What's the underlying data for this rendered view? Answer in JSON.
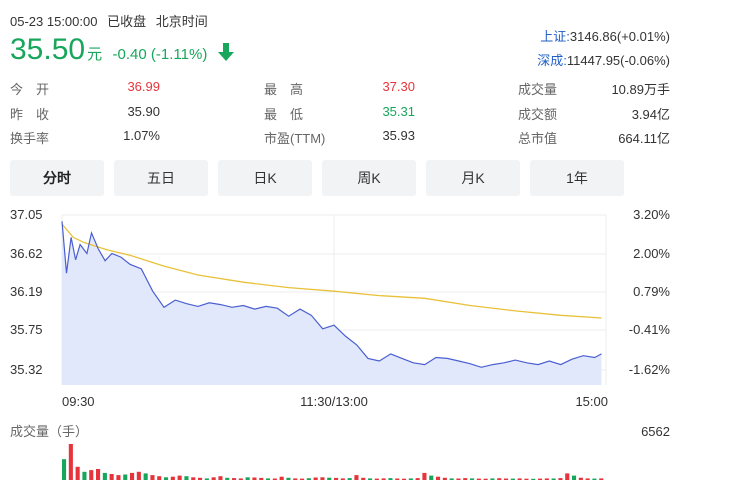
{
  "header": {
    "datetime": "05-23 15:00:00",
    "status": "已收盘",
    "timezone": "北京时间"
  },
  "quote": {
    "price": "35.50",
    "unit": "元",
    "change": "-0.40",
    "change_pct": "(-1.11%)",
    "direction": "down-arrow-icon"
  },
  "indices": [
    {
      "name": "上证:",
      "value": "3146.86(+0.01%)"
    },
    {
      "name": "深成:",
      "value": "11447.95(-0.06%)"
    }
  ],
  "stats": {
    "open": {
      "label": "今　开",
      "value": "36.99"
    },
    "prev_close": {
      "label": "昨　收",
      "value": "35.90"
    },
    "turnover_rate": {
      "label": "换手率",
      "value": "1.07%"
    },
    "high": {
      "label": "最　高",
      "value": "37.30"
    },
    "low": {
      "label": "最　低",
      "value": "35.31"
    },
    "pe": {
      "label": "市盈(TTM)",
      "value": "35.93"
    },
    "volume": {
      "label": "成交量",
      "value": "10.89万手"
    },
    "amount": {
      "label": "成交额",
      "value": "3.94亿"
    },
    "market_cap": {
      "label": "总市值",
      "value": "664.11亿"
    }
  },
  "tabs": [
    {
      "label": "分时",
      "active": true
    },
    {
      "label": "五日",
      "active": false
    },
    {
      "label": "日K",
      "active": false
    },
    {
      "label": "周K",
      "active": false
    },
    {
      "label": "月K",
      "active": false
    },
    {
      "label": "1年",
      "active": false
    }
  ],
  "colors": {
    "up": "#e7343b",
    "down": "#17a65b",
    "price_line": "#4a5fd0",
    "avg_line": "#e8c13a",
    "area": "#dfe5fb"
  },
  "chart_data": {
    "type": "line",
    "y_ticks_left": [
      "37.05",
      "36.62",
      "36.19",
      "35.75",
      "35.32"
    ],
    "y_ticks_right": [
      "3.20%",
      "2.00%",
      "0.79%",
      "-0.41%",
      "-1.62%"
    ],
    "x_ticks": [
      "09:30",
      "11:30/13:00",
      "15:00"
    ],
    "ylim": [
      35.32,
      37.05
    ],
    "prev_close": 35.9,
    "xlim": [
      0,
      240
    ],
    "series": [
      {
        "role": "price",
        "x": [
          0,
          2,
          4,
          6,
          8,
          11,
          13,
          16,
          19,
          22,
          26,
          30,
          35,
          40,
          45,
          50,
          55,
          60,
          65,
          70,
          75,
          80,
          85,
          90,
          95,
          100,
          105,
          110,
          115,
          120,
          125,
          130,
          135,
          140,
          145,
          150,
          155,
          160,
          165,
          170,
          175,
          180,
          185,
          190,
          195,
          200,
          205,
          210,
          215,
          220,
          225,
          230,
          235,
          238
        ],
        "y": [
          36.98,
          36.4,
          36.8,
          36.55,
          36.72,
          36.62,
          36.85,
          36.67,
          36.54,
          36.62,
          36.58,
          36.5,
          36.45,
          36.2,
          36.02,
          36.1,
          36.06,
          36.03,
          36.07,
          36.05,
          36.02,
          36.04,
          36.0,
          36.03,
          36.01,
          35.92,
          36.0,
          35.93,
          35.78,
          35.82,
          35.7,
          35.6,
          35.45,
          35.42,
          35.5,
          35.45,
          35.4,
          35.38,
          35.46,
          35.45,
          35.42,
          35.39,
          35.35,
          35.38,
          35.4,
          35.43,
          35.4,
          35.38,
          35.42,
          35.38,
          35.44,
          35.48,
          35.46,
          35.5
        ]
      },
      {
        "role": "average",
        "x": [
          0,
          5,
          10,
          20,
          30,
          45,
          60,
          80,
          100,
          120,
          140,
          160,
          180,
          200,
          220,
          238
        ],
        "y": [
          36.95,
          36.8,
          36.74,
          36.66,
          36.6,
          36.48,
          36.38,
          36.3,
          36.24,
          36.2,
          36.15,
          36.12,
          36.04,
          35.98,
          35.93,
          35.9
        ]
      }
    ],
    "volume": {
      "label": "成交量（手）",
      "max": "6562",
      "max_value": 6562,
      "bars": [
        3800,
        6562,
        2400,
        1500,
        1800,
        2000,
        1300,
        1100,
        900,
        1000,
        1300,
        1500,
        1200,
        900,
        700,
        500,
        600,
        800,
        700,
        500,
        400,
        300,
        500,
        700,
        400,
        350,
        300,
        500,
        450,
        380,
        300,
        280,
        600,
        400,
        300,
        260,
        320,
        450,
        500,
        420,
        380,
        300,
        350,
        900,
        400,
        300,
        260,
        300,
        340,
        280,
        240,
        300,
        350,
        1300,
        800,
        600,
        400,
        300,
        280,
        350,
        300,
        260,
        240,
        300,
        320,
        280,
        260,
        300,
        240,
        220,
        260,
        300,
        280,
        350,
        1200,
        800,
        420,
        300,
        260,
        300
      ]
    }
  }
}
